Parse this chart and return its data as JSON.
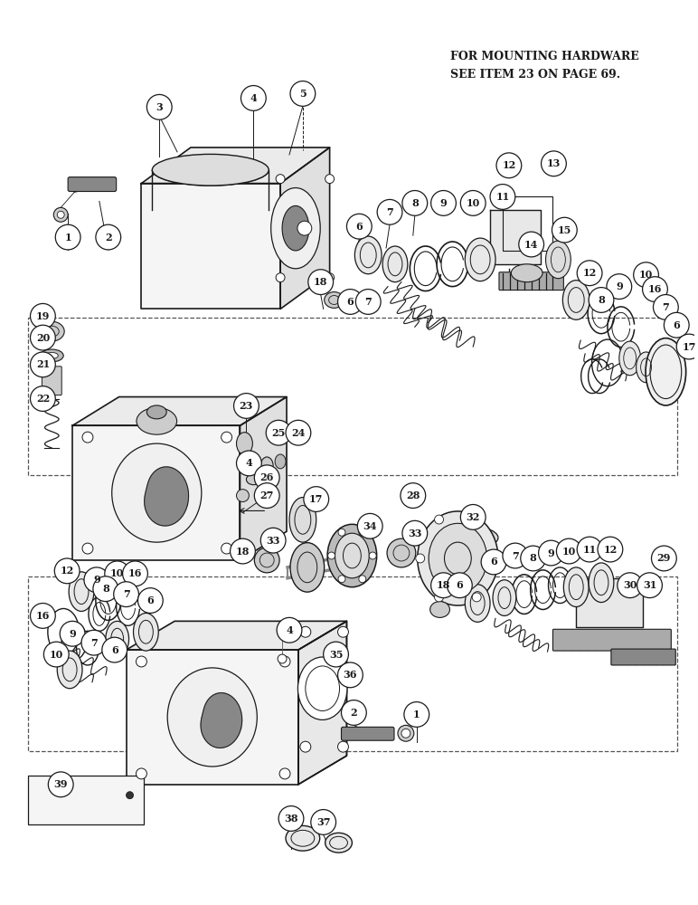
{
  "background_color": "#ffffff",
  "text_color": "#000000",
  "note_line1": "FOR MOUNTING HARDWARE",
  "note_line2": "SEE ITEM 23 ON PAGE 69.",
  "fig_width": 7.72,
  "fig_height": 10.0,
  "dpi": 100
}
